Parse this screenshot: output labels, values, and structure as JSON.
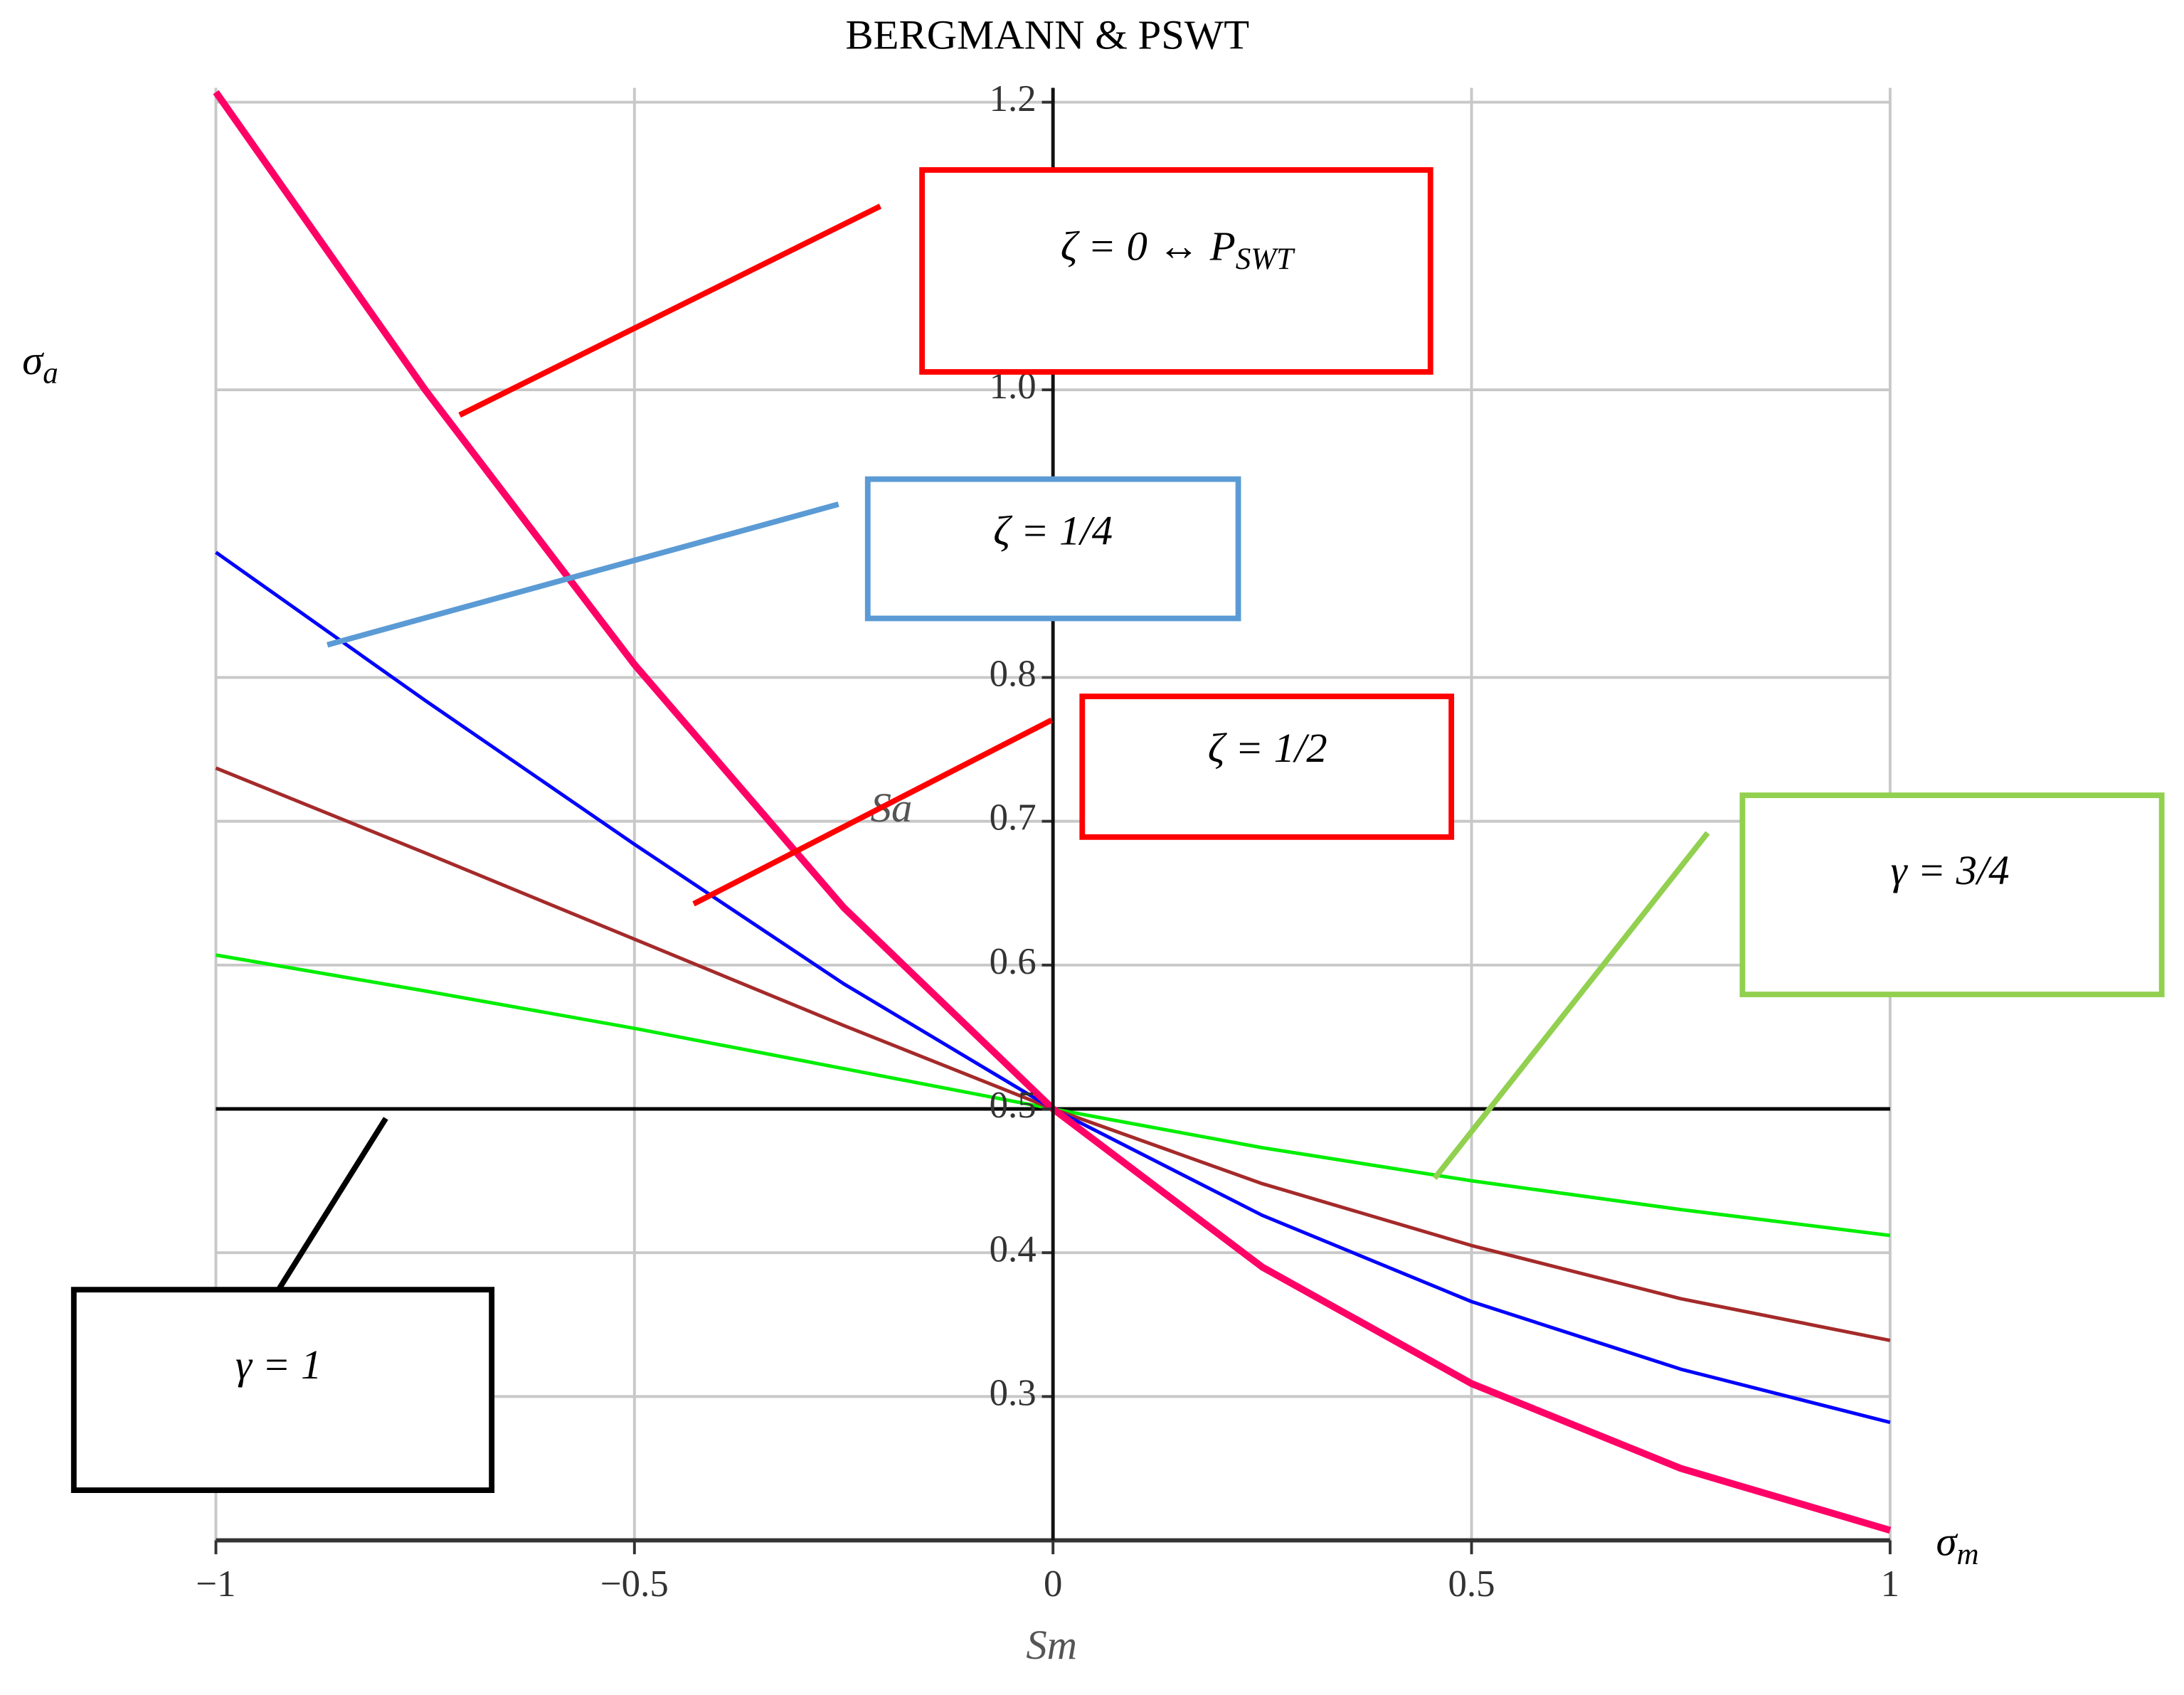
{
  "chart_data": {
    "type": "line",
    "title": "BERGMANN & PSWT",
    "x_label": "Sm",
    "y_label": "Sa",
    "x": [
      -1,
      -0.75,
      -0.5,
      -0.25,
      0,
      0.25,
      0.5,
      0.75,
      1
    ],
    "series": [
      {
        "color": "#000000",
        "values": [
          0.5,
          0.5,
          0.5,
          0.5,
          0.5,
          0.5,
          0.5,
          0.5,
          0.5
        ]
      },
      {
        "color": "#00ee00",
        "values": [
          0.607,
          0.582,
          0.556,
          0.528,
          0.5,
          0.473,
          0.45,
          0.43,
          0.412
        ]
      },
      {
        "color": "#a52a2a",
        "values": [
          0.737,
          0.678,
          0.618,
          0.558,
          0.5,
          0.448,
          0.405,
          0.368,
          0.339
        ]
      },
      {
        "color": "#0000ff",
        "values": [
          0.887,
          0.784,
          0.684,
          0.587,
          0.5,
          0.426,
          0.366,
          0.319,
          0.282
        ]
      },
      {
        "color": "#ff0066",
        "values": [
          1.207,
          1.0,
          0.809,
          0.64,
          0.5,
          0.39,
          0.309,
          0.25,
          0.207
        ]
      }
    ],
    "xlim": [
      -1,
      1
    ],
    "ylim": [
      0.2,
      1.21
    ],
    "xticks": [
      {
        "value": -1,
        "label": "−1"
      },
      {
        "value": -0.5,
        "label": "−0.5"
      },
      0,
      0.5,
      1
    ],
    "yticks": [
      0.3,
      0.4,
      0.5,
      0.6,
      0.7,
      0.8,
      {
        "value": 1.0,
        "label": "1.0"
      },
      1.2
    ],
    "grid": true,
    "annotations": [
      {
        "text": "ζ = 0  ↔ P",
        "sub": "SWT"
      },
      {
        "text": "ζ = 1/4"
      },
      {
        "text": "ζ = 1/2"
      },
      {
        "text": "γ = 3/4"
      },
      {
        "text": "γ = 1"
      }
    ],
    "y_symbol": {
      "text": "σ",
      "sub": "a"
    },
    "x_symbol": {
      "text": "σ",
      "sub": "m"
    }
  }
}
